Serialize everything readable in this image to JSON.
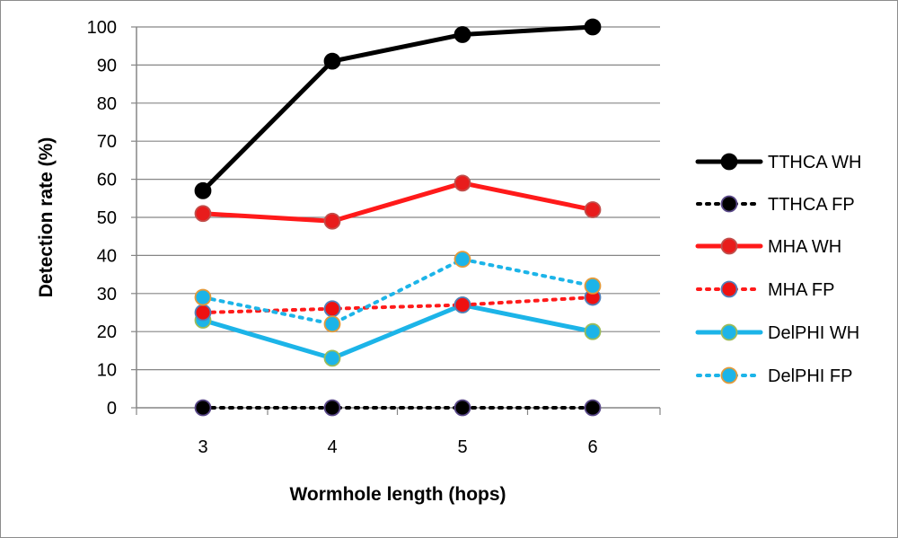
{
  "chart_data": {
    "type": "line",
    "title": "",
    "xlabel": "Wormhole length (hops)",
    "ylabel": "Detection rate (%)",
    "categories": [
      "3",
      "4",
      "5",
      "6"
    ],
    "ylim": [
      0,
      100
    ],
    "yticks": [
      0,
      10,
      20,
      30,
      40,
      50,
      60,
      70,
      80,
      90,
      100
    ],
    "grid": "horizontal",
    "legend_position": "right",
    "series": [
      {
        "name": "TTHCA WH",
        "values": [
          57,
          91,
          98,
          100
        ],
        "line_color": "#000000",
        "marker_fill": "#000000",
        "marker_stroke": "#000000",
        "line_style": "solid"
      },
      {
        "name": "TTHCA FP",
        "values": [
          0,
          0,
          0,
          0
        ],
        "line_color": "#000000",
        "marker_fill": "#000000",
        "marker_stroke": "#5b4a8a",
        "line_style": "dotted"
      },
      {
        "name": "MHA WH",
        "values": [
          51,
          49,
          59,
          52
        ],
        "line_color": "#ff1a1a",
        "marker_fill": "#e81c1c",
        "marker_stroke": "#c0504d",
        "line_style": "solid"
      },
      {
        "name": "MHA FP",
        "values": [
          25,
          26,
          27,
          29
        ],
        "line_color": "#ff1a1a",
        "marker_fill": "#ee1111",
        "marker_stroke": "#4f81bd",
        "line_style": "dotted"
      },
      {
        "name": "DelPHI WH",
        "values": [
          23,
          13,
          27,
          20
        ],
        "line_color": "#1cb4e8",
        "marker_fill": "#1cb4e8",
        "marker_stroke": "#9bbb59",
        "line_style": "solid"
      },
      {
        "name": "DelPHI FP",
        "values": [
          29,
          22,
          39,
          32
        ],
        "line_color": "#1cb4e8",
        "marker_fill": "#1cb4e8",
        "marker_stroke": "#e39a3a",
        "line_style": "dotted"
      }
    ]
  }
}
